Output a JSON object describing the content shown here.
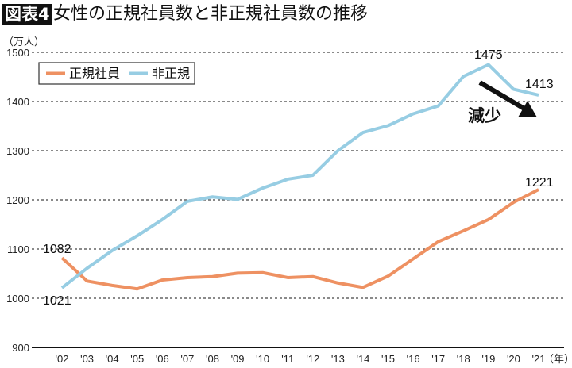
{
  "figure_label": "図表4",
  "title": "女性の正規社員数と非正規社員数の推移",
  "chart_data": {
    "type": "line",
    "title": "女性の正規社員数と非正規社員数の推移",
    "ylabel": "（万人）",
    "xlabel": "（年）",
    "ylim": [
      900,
      1500
    ],
    "yticks": [
      900,
      1000,
      1100,
      1200,
      1300,
      1400,
      1500
    ],
    "grid": true,
    "legend_placement": "top-left",
    "categories": [
      "'02",
      "'03",
      "'04",
      "'05",
      "'06",
      "'07",
      "'08",
      "'09",
      "'10",
      "'11",
      "'12",
      "'13",
      "'14",
      "'15",
      "'16",
      "'17",
      "'18",
      "'19",
      "'20",
      "'21"
    ],
    "series": [
      {
        "name": "正規社員",
        "color": "#ee9162",
        "values": [
          1082,
          1035,
          1026,
          1019,
          1037,
          1042,
          1044,
          1051,
          1052,
          1042,
          1044,
          1031,
          1022,
          1045,
          1080,
          1115,
          1137,
          1160,
          1195,
          1221
        ]
      },
      {
        "name": "非正規",
        "color": "#97cde3",
        "values": [
          1021,
          1061,
          1097,
          1127,
          1160,
          1197,
          1206,
          1201,
          1224,
          1242,
          1250,
          1300,
          1337,
          1351,
          1375,
          1391,
          1451,
          1475,
          1425,
          1413
        ]
      }
    ],
    "annotations": [
      {
        "text": "1082",
        "series": 0,
        "index": 0
      },
      {
        "text": "1021",
        "series": 1,
        "index": 0
      },
      {
        "text": "1475",
        "series": 1,
        "index": 17
      },
      {
        "text": "1413",
        "series": 1,
        "index": 19
      },
      {
        "text": "1221",
        "series": 0,
        "index": 19
      },
      {
        "text": "減少",
        "arrow": true
      }
    ]
  }
}
